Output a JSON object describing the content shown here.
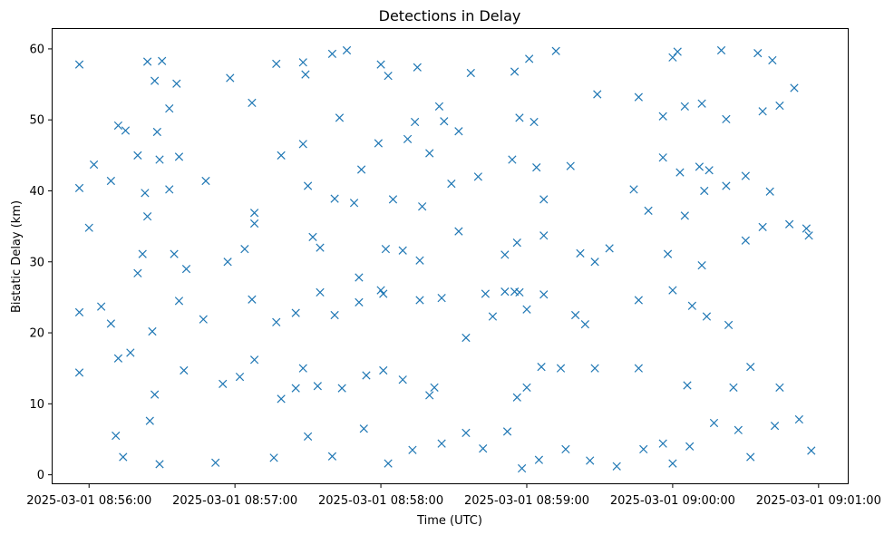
{
  "chart_data": {
    "type": "scatter",
    "title": "Detections in Delay",
    "xlabel": "Time (UTC)",
    "ylabel": "Bistatic Delay (km)",
    "x_is_time": true,
    "xlim": [
      "2025-03-01 08:55:45",
      "2025-03-01 09:01:12"
    ],
    "ylim": [
      -1.2,
      62.8
    ],
    "x_ticks": [
      "2025-03-01 08:56:00",
      "2025-03-01 08:57:00",
      "2025-03-01 08:58:00",
      "2025-03-01 08:59:00",
      "2025-03-01 09:00:00",
      "2025-03-01 09:01:00"
    ],
    "y_ticks": [
      0,
      10,
      20,
      30,
      40,
      50,
      60
    ],
    "grid": false,
    "legend": "none",
    "marker": "x",
    "color": "#1f77b4",
    "series": [
      {
        "points": [
          [
            "2025-03-01 08:55:56",
            57.8
          ],
          [
            "2025-03-01 08:56:12",
            49.2
          ],
          [
            "2025-03-01 08:56:24",
            58.2
          ],
          [
            "2025-03-01 08:56:27",
            55.5
          ],
          [
            "2025-03-01 08:56:30",
            58.3
          ],
          [
            "2025-03-01 08:56:33",
            51.6
          ],
          [
            "2025-03-01 08:56:36",
            55.1
          ],
          [
            "2025-03-01 08:56:58",
            55.9
          ],
          [
            "2025-03-01 08:57:07",
            52.4
          ],
          [
            "2025-03-01 08:57:17",
            57.9
          ],
          [
            "2025-03-01 08:57:28",
            58.1
          ],
          [
            "2025-03-01 08:57:29",
            56.4
          ],
          [
            "2025-03-01 08:57:40",
            59.3
          ],
          [
            "2025-03-01 08:57:46",
            59.8
          ],
          [
            "2025-03-01 08:58:00",
            57.8
          ],
          [
            "2025-03-01 08:58:03",
            56.2
          ],
          [
            "2025-03-01 08:58:15",
            57.4
          ],
          [
            "2025-03-01 08:58:37",
            56.6
          ],
          [
            "2025-03-01 08:58:55",
            56.8
          ],
          [
            "2025-03-01 08:59:01",
            58.6
          ],
          [
            "2025-03-01 08:59:12",
            59.7
          ],
          [
            "2025-03-01 09:00:00",
            58.8
          ],
          [
            "2025-03-01 09:00:02",
            59.6
          ],
          [
            "2025-03-01 09:00:20",
            59.8
          ],
          [
            "2025-03-01 09:00:35",
            59.4
          ],
          [
            "2025-03-01 09:00:41",
            58.4
          ],
          [
            "2025-03-01 08:56:15",
            48.5
          ],
          [
            "2025-03-01 08:56:28",
            48.3
          ],
          [
            "2025-03-01 08:57:43",
            50.3
          ],
          [
            "2025-03-01 08:58:14",
            49.7
          ],
          [
            "2025-03-01 08:58:24",
            51.9
          ],
          [
            "2025-03-01 08:58:26",
            49.8
          ],
          [
            "2025-03-01 08:58:32",
            48.4
          ],
          [
            "2025-03-01 08:58:57",
            50.3
          ],
          [
            "2025-03-01 08:59:03",
            49.7
          ],
          [
            "2025-03-01 08:59:29",
            53.6
          ],
          [
            "2025-03-01 08:59:46",
            53.2
          ],
          [
            "2025-03-01 08:59:56",
            50.5
          ],
          [
            "2025-03-01 09:00:05",
            51.9
          ],
          [
            "2025-03-01 09:00:12",
            52.3
          ],
          [
            "2025-03-01 09:00:22",
            50.1
          ],
          [
            "2025-03-01 09:00:37",
            51.2
          ],
          [
            "2025-03-01 09:00:44",
            52.0
          ],
          [
            "2025-03-01 09:00:50",
            54.5
          ],
          [
            "2025-03-01 08:55:56",
            40.4
          ],
          [
            "2025-03-01 08:56:02",
            43.7
          ],
          [
            "2025-03-01 08:56:09",
            41.4
          ],
          [
            "2025-03-01 08:56:20",
            45.0
          ],
          [
            "2025-03-01 08:56:23",
            39.7
          ],
          [
            "2025-03-01 08:56:29",
            44.4
          ],
          [
            "2025-03-01 08:56:33",
            40.2
          ],
          [
            "2025-03-01 08:56:37",
            44.8
          ],
          [
            "2025-03-01 08:56:48",
            41.4
          ],
          [
            "2025-03-01 08:57:08",
            36.9
          ],
          [
            "2025-03-01 08:57:19",
            45.0
          ],
          [
            "2025-03-01 08:57:28",
            46.6
          ],
          [
            "2025-03-01 08:57:30",
            40.7
          ],
          [
            "2025-03-01 08:57:41",
            38.9
          ],
          [
            "2025-03-01 08:57:49",
            38.3
          ],
          [
            "2025-03-01 08:57:52",
            43.0
          ],
          [
            "2025-03-01 08:57:59",
            46.7
          ],
          [
            "2025-03-01 08:58:05",
            38.8
          ],
          [
            "2025-03-01 08:58:11",
            47.3
          ],
          [
            "2025-03-01 08:58:17",
            37.8
          ],
          [
            "2025-03-01 08:58:20",
            45.3
          ],
          [
            "2025-03-01 08:58:29",
            41.0
          ],
          [
            "2025-03-01 08:58:40",
            42.0
          ],
          [
            "2025-03-01 08:58:54",
            44.4
          ],
          [
            "2025-03-01 08:59:04",
            43.3
          ],
          [
            "2025-03-01 08:59:07",
            38.8
          ],
          [
            "2025-03-01 08:59:18",
            43.5
          ],
          [
            "2025-03-01 08:59:44",
            40.2
          ],
          [
            "2025-03-01 08:59:50",
            37.2
          ],
          [
            "2025-03-01 08:59:56",
            44.7
          ],
          [
            "2025-03-01 09:00:03",
            42.6
          ],
          [
            "2025-03-01 09:00:11",
            43.4
          ],
          [
            "2025-03-01 09:00:13",
            40.0
          ],
          [
            "2025-03-01 09:00:15",
            42.9
          ],
          [
            "2025-03-01 09:00:22",
            40.7
          ],
          [
            "2025-03-01 09:00:30",
            42.1
          ],
          [
            "2025-03-01 09:00:40",
            39.9
          ],
          [
            "2025-03-01 08:56:00",
            34.8
          ],
          [
            "2025-03-01 08:56:24",
            36.4
          ],
          [
            "2025-03-01 08:56:22",
            31.1
          ],
          [
            "2025-03-01 08:56:35",
            31.1
          ],
          [
            "2025-03-01 08:56:40",
            29.0
          ],
          [
            "2025-03-01 08:56:57",
            30.0
          ],
          [
            "2025-03-01 08:57:04",
            31.8
          ],
          [
            "2025-03-01 08:57:08",
            35.4
          ],
          [
            "2025-03-01 08:57:32",
            33.5
          ],
          [
            "2025-03-01 08:57:35",
            32.0
          ],
          [
            "2025-03-01 08:57:51",
            27.8
          ],
          [
            "2025-03-01 08:58:02",
            31.8
          ],
          [
            "2025-03-01 08:58:09",
            31.6
          ],
          [
            "2025-03-01 08:58:16",
            30.2
          ],
          [
            "2025-03-01 08:58:32",
            34.3
          ],
          [
            "2025-03-01 08:58:51",
            31.0
          ],
          [
            "2025-03-01 08:58:56",
            32.7
          ],
          [
            "2025-03-01 08:59:07",
            33.7
          ],
          [
            "2025-03-01 08:59:22",
            31.2
          ],
          [
            "2025-03-01 08:59:28",
            30.0
          ],
          [
            "2025-03-01 08:59:34",
            31.9
          ],
          [
            "2025-03-01 08:59:58",
            31.1
          ],
          [
            "2025-03-01 09:00:05",
            36.5
          ],
          [
            "2025-03-01 09:00:12",
            29.5
          ],
          [
            "2025-03-01 09:00:30",
            33.0
          ],
          [
            "2025-03-01 09:00:37",
            34.9
          ],
          [
            "2025-03-01 09:00:48",
            35.3
          ],
          [
            "2025-03-01 09:00:55",
            34.7
          ],
          [
            "2025-03-01 09:00:56",
            33.7
          ],
          [
            "2025-03-01 08:55:56",
            22.9
          ],
          [
            "2025-03-01 08:56:05",
            23.7
          ],
          [
            "2025-03-01 08:56:09",
            21.3
          ],
          [
            "2025-03-01 08:56:20",
            28.4
          ],
          [
            "2025-03-01 08:56:26",
            20.2
          ],
          [
            "2025-03-01 08:56:37",
            24.5
          ],
          [
            "2025-03-01 08:56:47",
            21.9
          ],
          [
            "2025-03-01 08:57:07",
            24.7
          ],
          [
            "2025-03-01 08:57:17",
            21.5
          ],
          [
            "2025-03-01 08:57:25",
            22.8
          ],
          [
            "2025-03-01 08:57:35",
            25.7
          ],
          [
            "2025-03-01 08:57:41",
            22.5
          ],
          [
            "2025-03-01 08:57:51",
            24.3
          ],
          [
            "2025-03-01 08:58:00",
            26.0
          ],
          [
            "2025-03-01 08:58:01",
            25.5
          ],
          [
            "2025-03-01 08:58:16",
            24.6
          ],
          [
            "2025-03-01 08:58:25",
            24.9
          ],
          [
            "2025-03-01 08:58:43",
            25.5
          ],
          [
            "2025-03-01 08:58:46",
            22.3
          ],
          [
            "2025-03-01 08:58:51",
            25.8
          ],
          [
            "2025-03-01 08:58:55",
            25.8
          ],
          [
            "2025-03-01 08:58:57",
            25.7
          ],
          [
            "2025-03-01 08:59:00",
            23.3
          ],
          [
            "2025-03-01 08:59:07",
            25.4
          ],
          [
            "2025-03-01 08:59:20",
            22.5
          ],
          [
            "2025-03-01 08:59:24",
            21.2
          ],
          [
            "2025-03-01 08:59:46",
            24.6
          ],
          [
            "2025-03-01 09:00:00",
            26.0
          ],
          [
            "2025-03-01 09:00:08",
            23.8
          ],
          [
            "2025-03-01 09:00:14",
            22.3
          ],
          [
            "2025-03-01 09:00:23",
            21.1
          ],
          [
            "2025-03-01 08:55:56",
            14.4
          ],
          [
            "2025-03-01 08:56:12",
            16.4
          ],
          [
            "2025-03-01 08:56:17",
            17.2
          ],
          [
            "2025-03-01 08:56:27",
            11.3
          ],
          [
            "2025-03-01 08:56:39",
            14.7
          ],
          [
            "2025-03-01 08:56:55",
            12.8
          ],
          [
            "2025-03-01 08:57:02",
            13.8
          ],
          [
            "2025-03-01 08:57:08",
            16.2
          ],
          [
            "2025-03-01 08:57:19",
            10.7
          ],
          [
            "2025-03-01 08:57:25",
            12.2
          ],
          [
            "2025-03-01 08:57:28",
            15.0
          ],
          [
            "2025-03-01 08:57:34",
            12.5
          ],
          [
            "2025-03-01 08:57:44",
            12.2
          ],
          [
            "2025-03-01 08:57:54",
            14.0
          ],
          [
            "2025-03-01 08:58:01",
            14.7
          ],
          [
            "2025-03-01 08:58:09",
            13.4
          ],
          [
            "2025-03-01 08:58:20",
            11.2
          ],
          [
            "2025-03-01 08:58:22",
            12.3
          ],
          [
            "2025-03-01 08:58:35",
            19.3
          ],
          [
            "2025-03-01 08:58:56",
            10.9
          ],
          [
            "2025-03-01 08:59:00",
            12.3
          ],
          [
            "2025-03-01 08:59:06",
            15.2
          ],
          [
            "2025-03-01 08:59:14",
            15.0
          ],
          [
            "2025-03-01 08:59:28",
            15.0
          ],
          [
            "2025-03-01 08:59:46",
            15.0
          ],
          [
            "2025-03-01 09:00:06",
            12.6
          ],
          [
            "2025-03-01 09:00:25",
            12.3
          ],
          [
            "2025-03-01 09:00:32",
            15.2
          ],
          [
            "2025-03-01 09:00:44",
            12.3
          ],
          [
            "2025-03-01 08:56:11",
            5.5
          ],
          [
            "2025-03-01 08:56:14",
            2.5
          ],
          [
            "2025-03-01 08:56:25",
            7.6
          ],
          [
            "2025-03-01 08:56:29",
            1.5
          ],
          [
            "2025-03-01 08:56:52",
            1.7
          ],
          [
            "2025-03-01 08:57:16",
            2.4
          ],
          [
            "2025-03-01 08:57:30",
            5.4
          ],
          [
            "2025-03-01 08:57:40",
            2.6
          ],
          [
            "2025-03-01 08:57:53",
            6.5
          ],
          [
            "2025-03-01 08:58:03",
            1.6
          ],
          [
            "2025-03-01 08:58:13",
            3.5
          ],
          [
            "2025-03-01 08:58:25",
            4.4
          ],
          [
            "2025-03-01 08:58:35",
            5.9
          ],
          [
            "2025-03-01 08:58:42",
            3.7
          ],
          [
            "2025-03-01 08:58:52",
            6.1
          ],
          [
            "2025-03-01 08:58:58",
            0.9
          ],
          [
            "2025-03-01 08:59:05",
            2.1
          ],
          [
            "2025-03-01 08:59:16",
            3.6
          ],
          [
            "2025-03-01 08:59:26",
            2.0
          ],
          [
            "2025-03-01 08:59:37",
            1.2
          ],
          [
            "2025-03-01 08:59:48",
            3.6
          ],
          [
            "2025-03-01 08:59:56",
            4.4
          ],
          [
            "2025-03-01 09:00:00",
            1.6
          ],
          [
            "2025-03-01 09:00:07",
            4.0
          ],
          [
            "2025-03-01 09:00:17",
            7.3
          ],
          [
            "2025-03-01 09:00:27",
            6.3
          ],
          [
            "2025-03-01 09:00:32",
            2.5
          ],
          [
            "2025-03-01 09:00:42",
            6.9
          ],
          [
            "2025-03-01 09:00:52",
            7.8
          ],
          [
            "2025-03-01 09:00:57",
            3.4
          ]
        ]
      }
    ]
  }
}
